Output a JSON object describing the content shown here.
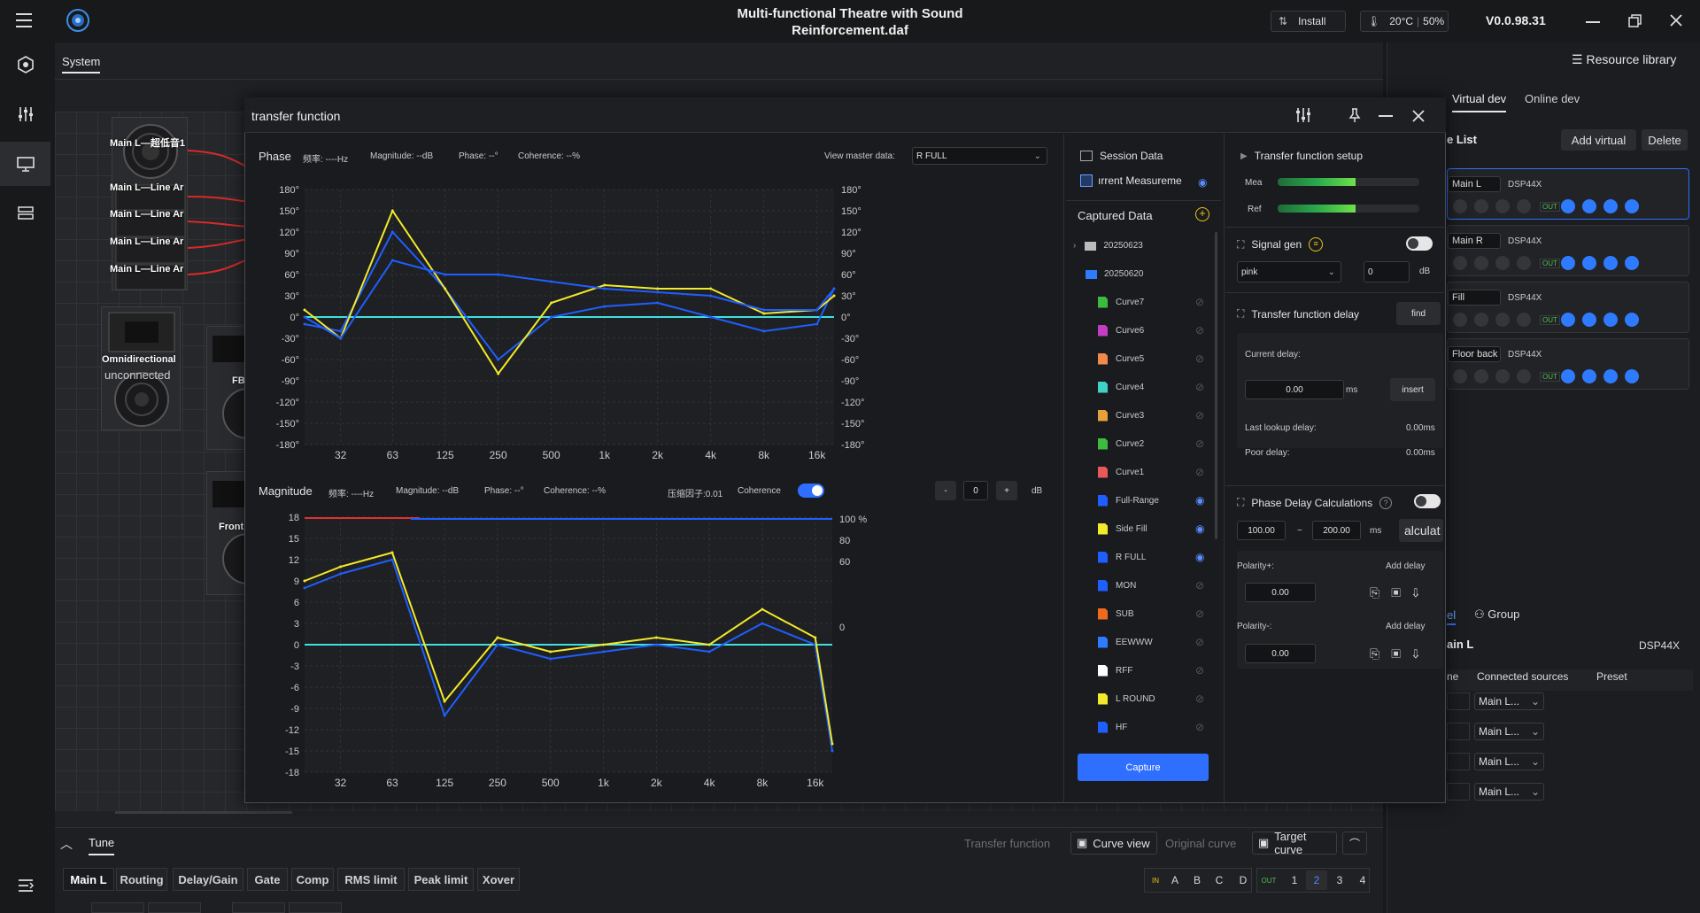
{
  "app": {
    "title_line1": "Multi-functional Theatre with Sound",
    "title_line2": "Reinforcement.daf",
    "install_label": "Install",
    "temperature": "20°C",
    "percent": "50%",
    "version": "V0.0.98.31"
  },
  "workspace": {
    "tab_system": "System",
    "speakers": [
      "Main L—超低音1",
      "Main L—Line Ar",
      "Main L—Line Ar",
      "Main L—Line Ar",
      "Main L—Line Ar"
    ],
    "omni_label": "Omnidirectional",
    "omni_status": "unconnected",
    "fb_label": "FB",
    "front_label": "Front"
  },
  "dialog": {
    "title": "transfer function",
    "phase": {
      "title": "Phase",
      "freq": "频率: ----Hz",
      "magnitude": "Magnitude: --dB",
      "phase": "Phase: --°",
      "coherence": "Coherence: --%",
      "view_master_label": "View master data:",
      "view_master_value": "R FULL",
      "y_ticks_left": [
        "180°",
        "150°",
        "120°",
        "90°",
        "60°",
        "30°",
        "0°",
        "-30°",
        "-60°",
        "-90°",
        "-120°",
        "-150°",
        "-180°"
      ],
      "x_ticks": [
        "32",
        "63",
        "125",
        "250",
        "500",
        "1k",
        "2k",
        "4k",
        "8k",
        "16k"
      ]
    },
    "magnitude": {
      "title": "Magnitude",
      "freq": "频率: ----Hz",
      "magnitude": "Magnitude: --dB",
      "phase": "Phase: --°",
      "coherence": "Coherence: --%",
      "compression": "压缩因子:0.01",
      "coherence_label": "Coherence",
      "stepper_minus": "-",
      "stepper_value": "0",
      "stepper_plus": "+",
      "unit": "dB",
      "y_ticks_left": [
        "18",
        "15",
        "12",
        "9",
        "6",
        "3",
        "0",
        "-3",
        "-6",
        "-9",
        "-12",
        "-15",
        "-18"
      ],
      "y_ticks_right": [
        "100 %",
        "80",
        "60",
        "0"
      ],
      "x_ticks": [
        "32",
        "63",
        "125",
        "250",
        "500",
        "1k",
        "2k",
        "4k",
        "8k",
        "16k"
      ]
    },
    "data_panel": {
      "session_data": "Session Data",
      "current_measurement": "ırrent Measureme",
      "captured_data": "Captured Data",
      "folders": [
        "20250623",
        "20250620"
      ],
      "curves": [
        {
          "name": "Curve7",
          "color": "#3dbb3d",
          "visible": false
        },
        {
          "name": "Curve6",
          "color": "#c23dc2",
          "visible": false
        },
        {
          "name": "Curve5",
          "color": "#f08a4b",
          "visible": false
        },
        {
          "name": "Curve4",
          "color": "#3fd0c6",
          "visible": false
        },
        {
          "name": "Curve3",
          "color": "#e8a13a",
          "visible": false
        },
        {
          "name": "Curve2",
          "color": "#3dbb3d",
          "visible": false
        },
        {
          "name": "Curve1",
          "color": "#e8595a",
          "visible": false
        },
        {
          "name": "Full-Range",
          "color": "#1f5fff",
          "visible": true
        },
        {
          "name": "Side Fill",
          "color": "#f2ea2b",
          "visible": true
        },
        {
          "name": "R FULL",
          "color": "#1f5fff",
          "visible": true
        },
        {
          "name": "MON",
          "color": "#1f5fff",
          "visible": false
        },
        {
          "name": "SUB",
          "color": "#f06a1e",
          "visible": false
        },
        {
          "name": "EEWWW",
          "color": "#2f7bff",
          "visible": false
        },
        {
          "name": "RFF",
          "color": "#ffffff",
          "visible": false
        },
        {
          "name": "L ROUND",
          "color": "#f2ea2b",
          "visible": false
        },
        {
          "name": "HF",
          "color": "#1f5fff",
          "visible": false
        }
      ],
      "capture_button": "Capture"
    },
    "setup": {
      "title": "Transfer function setup",
      "mea": "Mea",
      "ref": "Ref",
      "mea_level": 0.55,
      "ref_level": 0.55,
      "signal_gen": "Signal gen",
      "signal_type": "pink",
      "signal_db": "0",
      "db_unit": "dB",
      "tf_delay": "Transfer function delay",
      "find": "find",
      "current_delay": "Current delay:",
      "delay_value": "0.00",
      "ms": "ms",
      "insert": "insert",
      "last_lookup": "Last lookup delay:",
      "last_lookup_value": "0.00ms",
      "poor_delay": "Poor delay:",
      "poor_delay_value": "0.00ms",
      "phase_delay_calc": "Phase Delay Calculations",
      "range_from": "100.00",
      "range_sep": "~",
      "range_to": "200.00",
      "range_unit": "ms",
      "calculate": "alculat",
      "polarity_pos": "Polarity+:",
      "polarity_neg": "Polarity-:",
      "add_delay": "Add delay",
      "pol_pos_value": "0.00",
      "pol_neg_value": "0.00"
    }
  },
  "resource": {
    "title": "Resource library",
    "tab_virtual": "Virtual dev",
    "tab_online": "Online dev",
    "list_title": "e List",
    "add_virtual": "Add virtual",
    "delete": "Delete",
    "devices": [
      {
        "name": "Main L",
        "model": "DSP44X"
      },
      {
        "name": "Main R",
        "model": "DSP44X"
      },
      {
        "name": "Fill",
        "model": "DSP44X"
      },
      {
        "name": "Floor back",
        "model": "DSP44X"
      }
    ],
    "out_label": "OUT",
    "group_tab": "Group",
    "sel_tab": "el",
    "detail_name": "ain L",
    "detail_model": "DSP44X",
    "col_name": "ne",
    "col_sources": "Connected sources",
    "col_preset": "Preset",
    "source_rows": [
      "Main L...",
      "Main L...",
      "Main L...",
      "Main L..."
    ]
  },
  "tune": {
    "title": "Tune",
    "transfer_function": "Transfer function",
    "curve_view": "Curve view",
    "original_curve": "Original curve",
    "target_curve": "Target curve",
    "tabs": [
      "Main L",
      "Routing",
      "Delay/Gain",
      "Gate",
      "Comp",
      "RMS limit",
      "Peak limit",
      "Xover"
    ],
    "in_label": "IN",
    "inputs": [
      "A",
      "B",
      "C",
      "D"
    ],
    "out_label": "OUT",
    "outputs": [
      "1",
      "2",
      "3",
      "4"
    ],
    "selected_output": "2"
  },
  "chart_data": [
    {
      "type": "line",
      "title": "Phase",
      "x_scale": "log",
      "x_ticks": [
        "32",
        "63",
        "125",
        "250",
        "500",
        "1k",
        "2k",
        "4k",
        "8k",
        "16k"
      ],
      "ylim": [
        -180,
        180
      ],
      "series": [
        {
          "name": "R FULL",
          "color": "#1f5fff",
          "x": [
            20,
            32,
            63,
            125,
            250,
            500,
            1000,
            2000,
            4000,
            8000,
            16000,
            20000
          ],
          "y": [
            -10,
            -20,
            120,
            40,
            -60,
            0,
            15,
            20,
            0,
            -20,
            -10,
            40
          ]
        },
        {
          "name": "Side Fill",
          "color": "#f2ea2b",
          "x": [
            20,
            32,
            63,
            125,
            250,
            500,
            1000,
            2000,
            4000,
            8000,
            16000,
            20000
          ],
          "y": [
            10,
            -30,
            150,
            40,
            -80,
            20,
            45,
            40,
            40,
            5,
            10,
            30
          ]
        },
        {
          "name": "Full-Range",
          "color": "#1f5fff",
          "x": [
            20,
            32,
            63,
            125,
            250,
            500,
            1000,
            2000,
            4000,
            8000,
            16000,
            20000
          ],
          "y": [
            0,
            -30,
            80,
            60,
            60,
            50,
            40,
            35,
            30,
            10,
            10,
            40
          ]
        }
      ]
    },
    {
      "type": "line",
      "title": "Magnitude",
      "x_scale": "log",
      "x_ticks": [
        "32",
        "63",
        "125",
        "250",
        "500",
        "1k",
        "2k",
        "4k",
        "8k",
        "16k"
      ],
      "ylim": [
        -18,
        18
      ],
      "series": [
        {
          "name": "R FULL",
          "color": "#1f5fff",
          "x": [
            20,
            32,
            63,
            125,
            250,
            500,
            1000,
            2000,
            4000,
            8000,
            16000,
            20000
          ],
          "y": [
            8,
            10,
            12,
            -10,
            0,
            -2,
            -1,
            0,
            -1,
            3,
            0,
            -15
          ]
        },
        {
          "name": "Side Fill",
          "color": "#f2ea2b",
          "x": [
            20,
            32,
            63,
            125,
            250,
            500,
            1000,
            2000,
            4000,
            8000,
            16000,
            20000
          ],
          "y": [
            9,
            11,
            13,
            -8,
            1,
            -1,
            0,
            1,
            0,
            5,
            1,
            -14
          ]
        }
      ]
    }
  ]
}
